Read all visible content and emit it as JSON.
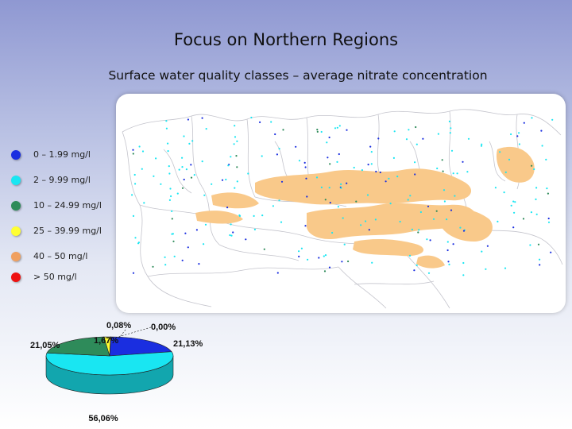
{
  "slide": {
    "title": "Focus on Northern Regions",
    "subtitle": "Surface water quality classes – average nitrate concentration"
  },
  "legend": [
    {
      "label": "0 – 1.99 mg/l",
      "color": "#1a2ee0"
    },
    {
      "label": "2 – 9.99 mg/l",
      "color": "#19e6f2"
    },
    {
      "label": "10 – 24.99 mg/l",
      "color": "#2e8b5a"
    },
    {
      "label": "25 – 39.99 mg/l",
      "color": "#ffff33"
    },
    {
      "label": "40 – 50 mg/l",
      "color": "#f0a060"
    },
    {
      "label": "> 50 mg/l",
      "color": "#ee1111"
    }
  ],
  "map": {
    "region_fill": "#f9c98a",
    "border_color": "#c4c4cc"
  },
  "chart_data": {
    "type": "pie",
    "title": "",
    "slices": [
      {
        "category": "0 – 1.99 mg/l",
        "value": 21.13,
        "label": "21,13%",
        "color": "#1a2ee0"
      },
      {
        "category": "2 – 9.99 mg/l",
        "value": 56.06,
        "label": "56,06%",
        "color": "#19e6f2"
      },
      {
        "category": "10 – 24.99 mg/l",
        "value": 21.05,
        "label": "21,05%",
        "color": "#2e8b5a"
      },
      {
        "category": "25 – 39.99 mg/l",
        "value": 1.67,
        "label": "1,67%",
        "color": "#ffff33"
      },
      {
        "category": "40 – 50 mg/l",
        "value": 0.08,
        "label": "0,08%",
        "color": "#f0a060"
      },
      {
        "category": "> 50 mg/l",
        "value": 0.0,
        "label": "0,00%",
        "color": "#ee1111"
      }
    ]
  }
}
